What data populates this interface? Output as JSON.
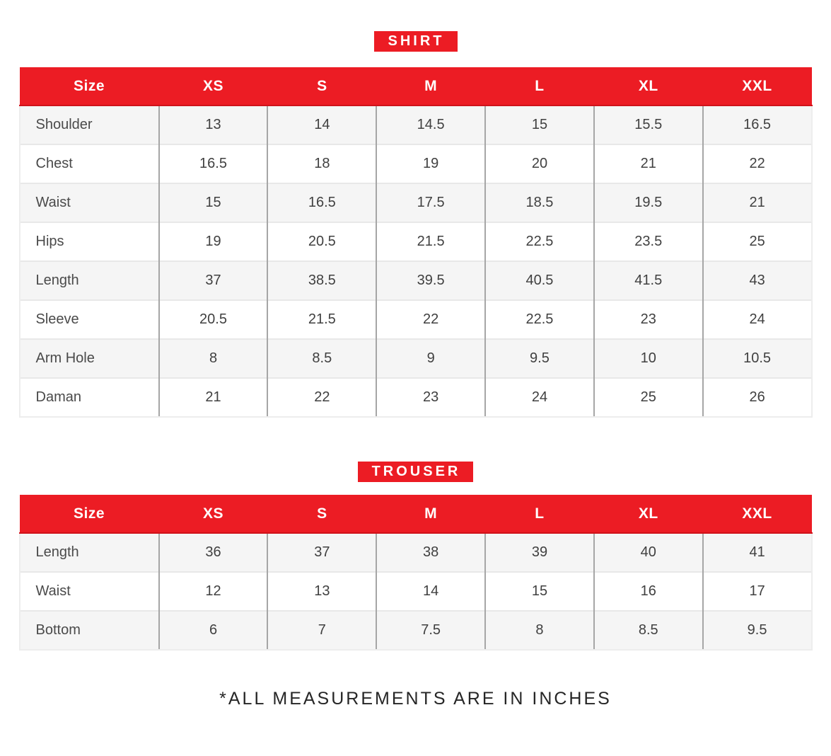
{
  "colors": {
    "accent_red": "#EC1C24",
    "accent_red_dark": "#CF121A",
    "row_alt": "#F5F5F5",
    "row_base": "#FFFFFF",
    "column_divider": "#A6A6A6",
    "row_line": "#E8E8E8",
    "body_text": "#404040",
    "header_text": "#FFFFFF"
  },
  "note": "*ALL MEASUREMENTS ARE IN INCHES",
  "chart_data": [
    {
      "type": "table",
      "title": "SHIRT",
      "columns": [
        "Size",
        "XS",
        "S",
        "M",
        "L",
        "XL",
        "XXL"
      ],
      "rows": [
        {
          "label": "Shoulder",
          "values": [
            "13",
            "14",
            "14.5",
            "15",
            "15.5",
            "16.5"
          ]
        },
        {
          "label": "Chest",
          "values": [
            "16.5",
            "18",
            "19",
            "20",
            "21",
            "22"
          ]
        },
        {
          "label": "Waist",
          "values": [
            "15",
            "16.5",
            "17.5",
            "18.5",
            "19.5",
            "21"
          ]
        },
        {
          "label": "Hips",
          "values": [
            "19",
            "20.5",
            "21.5",
            "22.5",
            "23.5",
            "25"
          ]
        },
        {
          "label": "Length",
          "values": [
            "37",
            "38.5",
            "39.5",
            "40.5",
            "41.5",
            "43"
          ]
        },
        {
          "label": "Sleeve",
          "values": [
            "20.5",
            "21.5",
            "22",
            "22.5",
            "23",
            "24"
          ]
        },
        {
          "label": "Arm Hole",
          "values": [
            "8",
            "8.5",
            "9",
            "9.5",
            "10",
            "10.5"
          ]
        },
        {
          "label": "Daman",
          "values": [
            "21",
            "22",
            "23",
            "24",
            "25",
            "26"
          ]
        }
      ]
    },
    {
      "type": "table",
      "title": "TROUSER",
      "columns": [
        "Size",
        "XS",
        "S",
        "M",
        "L",
        "XL",
        "XXL"
      ],
      "rows": [
        {
          "label": "Length",
          "values": [
            "36",
            "37",
            "38",
            "39",
            "40",
            "41"
          ]
        },
        {
          "label": "Waist",
          "values": [
            "12",
            "13",
            "14",
            "15",
            "16",
            "17"
          ]
        },
        {
          "label": "Bottom",
          "values": [
            "6",
            "7",
            "7.5",
            "8",
            "8.5",
            "9.5"
          ]
        }
      ]
    }
  ]
}
